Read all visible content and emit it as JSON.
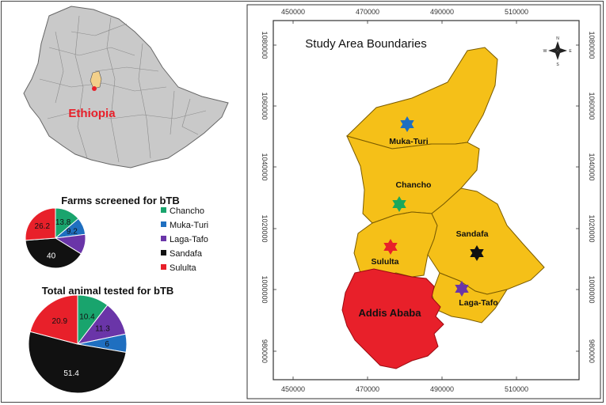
{
  "inset": {
    "country_label": "Ethiopia"
  },
  "map": {
    "title": "Study Area Boundaries",
    "x_ticks": [
      "450000",
      "470000",
      "490000",
      "510000"
    ],
    "y_ticks": [
      "1080000",
      "1060000",
      "1040000",
      "1020000",
      "1000000",
      "980000"
    ],
    "north_arrow": {
      "n": "N",
      "s": "S",
      "e": "E",
      "w": "W"
    },
    "districts": [
      {
        "name": "Muka-Turi",
        "fill": "#f5c018"
      },
      {
        "name": "Chancho",
        "fill": "#f5c018"
      },
      {
        "name": "Sululta",
        "fill": "#f5c018"
      },
      {
        "name": "Sandafa",
        "fill": "#f5c018"
      },
      {
        "name": "Laga-Tafo",
        "fill": "#f5c018"
      },
      {
        "name": "Addis Ababa",
        "fill": "#e8202a"
      }
    ],
    "markers": [
      {
        "district": "Muka-Turi",
        "color": "#1f6fc0",
        "icon": "star-icon"
      },
      {
        "district": "Chancho",
        "color": "#1aa85c",
        "icon": "star-icon"
      },
      {
        "district": "Sululta",
        "color": "#e8202a",
        "icon": "star-icon"
      },
      {
        "district": "Sandafa",
        "color": "#111111",
        "icon": "star-icon"
      },
      {
        "district": "Laga-Tafo",
        "color": "#6a35a8",
        "icon": "star-icon"
      }
    ]
  },
  "chart_data": [
    {
      "type": "pie",
      "title": "Farms screened for bTB",
      "categories": [
        "Chancho",
        "Muka-Turi",
        "Laga-Tafo",
        "Sandafa",
        "Sululta"
      ],
      "values": [
        13.8,
        9.2,
        10.8,
        40,
        26.2
      ],
      "labels": [
        "13.8",
        "9.2",
        "",
        "40",
        "26.2"
      ],
      "colors": [
        "#19a46d",
        "#1f6fc0",
        "#6a35a8",
        "#111111",
        "#e8202a"
      ],
      "legend": "right"
    },
    {
      "type": "pie",
      "title": "Total animal tested for bTB",
      "categories": [
        "Chancho",
        "Laga-Tafo",
        "Muka-Turi",
        "Sandafa",
        "Sululta"
      ],
      "values": [
        10.4,
        11.3,
        6,
        51.4,
        20.9
      ],
      "labels": [
        "10.4",
        "11.3",
        "6",
        "51.4",
        "20.9"
      ],
      "colors": [
        "#19a46d",
        "#6a35a8",
        "#1f6fc0",
        "#111111",
        "#e8202a"
      ]
    }
  ]
}
